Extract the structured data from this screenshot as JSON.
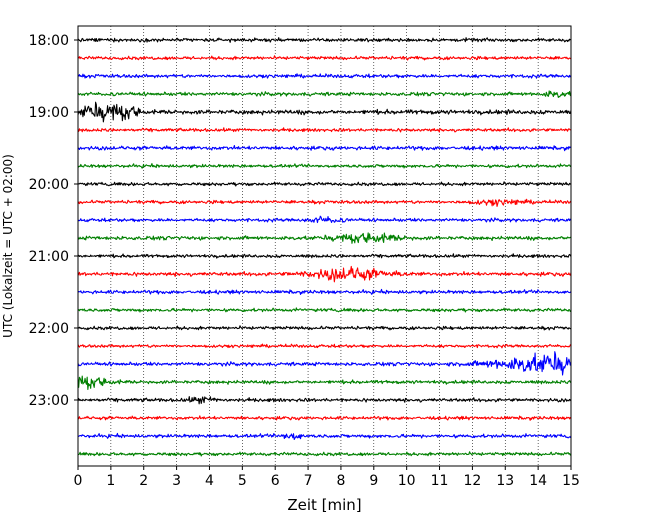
{
  "chart_data": {
    "type": "line",
    "title": "",
    "xlabel": "Zeit  [min]",
    "ylabel": "UTC (Lokalzeit = UTC + 02:00)",
    "xlim": [
      0,
      15
    ],
    "x_ticks": [
      0,
      1,
      2,
      3,
      4,
      5,
      6,
      7,
      8,
      9,
      10,
      11,
      12,
      13,
      14,
      15
    ],
    "x_grid": true,
    "x_grid_style": "dotted",
    "y_ticks": [
      "18:00",
      "19:00",
      "20:00",
      "21:00",
      "22:00",
      "23:00"
    ],
    "start_time": "18:00",
    "trace_interval_min": 15,
    "trace_colors": [
      "#000000",
      "#ff0000",
      "#0000ff",
      "#008000"
    ],
    "traces": [
      {
        "start": "18:00",
        "color": "#000000",
        "base_amplitude": 0.14,
        "bursts": []
      },
      {
        "start": "18:15",
        "color": "#ff0000",
        "base_amplitude": 0.13,
        "bursts": []
      },
      {
        "start": "18:30",
        "color": "#0000ff",
        "base_amplitude": 0.14,
        "bursts": []
      },
      {
        "start": "18:45",
        "color": "#008000",
        "base_amplitude": 0.14,
        "bursts": [
          {
            "t": 14.5,
            "width": 0.4,
            "amp": 0.2
          }
        ]
      },
      {
        "start": "19:00",
        "color": "#000000",
        "base_amplitude": 0.18,
        "bursts": [
          {
            "t": 0.3,
            "width": 0.4,
            "amp": 0.35
          },
          {
            "t": 1.0,
            "width": 0.5,
            "amp": 0.55
          },
          {
            "t": 1.6,
            "width": 0.3,
            "amp": 0.35
          }
        ]
      },
      {
        "start": "19:15",
        "color": "#ff0000",
        "base_amplitude": 0.13,
        "bursts": []
      },
      {
        "start": "19:30",
        "color": "#0000ff",
        "base_amplitude": 0.15,
        "bursts": []
      },
      {
        "start": "19:45",
        "color": "#008000",
        "base_amplitude": 0.13,
        "bursts": []
      },
      {
        "start": "20:00",
        "color": "#000000",
        "base_amplitude": 0.13,
        "bursts": []
      },
      {
        "start": "20:15",
        "color": "#ff0000",
        "base_amplitude": 0.13,
        "bursts": [
          {
            "t": 12.8,
            "width": 0.8,
            "amp": 0.15
          }
        ]
      },
      {
        "start": "20:30",
        "color": "#0000ff",
        "base_amplitude": 0.13,
        "bursts": [
          {
            "t": 7.5,
            "width": 0.5,
            "amp": 0.18
          }
        ]
      },
      {
        "start": "20:45",
        "color": "#008000",
        "base_amplitude": 0.15,
        "bursts": [
          {
            "t": 8.8,
            "width": 0.9,
            "amp": 0.35
          }
        ]
      },
      {
        "start": "21:00",
        "color": "#000000",
        "base_amplitude": 0.13,
        "bursts": []
      },
      {
        "start": "21:15",
        "color": "#ff0000",
        "base_amplitude": 0.15,
        "bursts": [
          {
            "t": 8.2,
            "width": 1.1,
            "amp": 0.45
          }
        ]
      },
      {
        "start": "21:30",
        "color": "#0000ff",
        "base_amplitude": 0.14,
        "bursts": []
      },
      {
        "start": "21:45",
        "color": "#008000",
        "base_amplitude": 0.13,
        "bursts": []
      },
      {
        "start": "22:00",
        "color": "#000000",
        "base_amplitude": 0.13,
        "bursts": []
      },
      {
        "start": "22:15",
        "color": "#ff0000",
        "base_amplitude": 0.12,
        "bursts": []
      },
      {
        "start": "22:30",
        "color": "#0000ff",
        "base_amplitude": 0.14,
        "bursts": [
          {
            "t": 14.3,
            "width": 1.6,
            "amp": 0.7
          }
        ]
      },
      {
        "start": "22:45",
        "color": "#008000",
        "base_amplitude": 0.14,
        "bursts": [
          {
            "t": 0.3,
            "width": 0.6,
            "amp": 0.45
          }
        ]
      },
      {
        "start": "23:00",
        "color": "#000000",
        "base_amplitude": 0.14,
        "bursts": [
          {
            "t": 3.8,
            "width": 0.4,
            "amp": 0.2
          }
        ]
      },
      {
        "start": "23:15",
        "color": "#ff0000",
        "base_amplitude": 0.13,
        "bursts": []
      },
      {
        "start": "23:30",
        "color": "#0000ff",
        "base_amplitude": 0.14,
        "bursts": [
          {
            "t": 6.5,
            "width": 0.3,
            "amp": 0.25
          }
        ]
      },
      {
        "start": "23:45",
        "color": "#008000",
        "base_amplitude": 0.13,
        "bursts": []
      }
    ]
  }
}
